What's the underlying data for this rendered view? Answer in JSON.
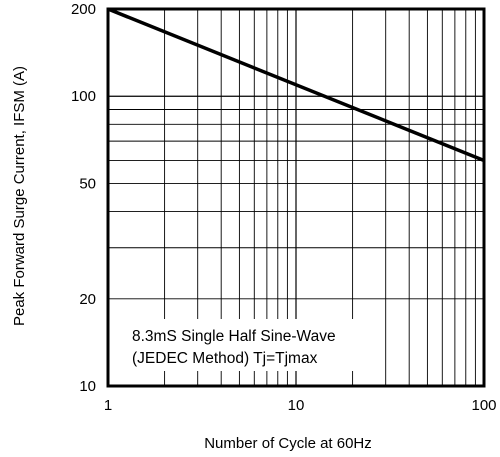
{
  "chart_data": {
    "type": "line",
    "title": "",
    "xlabel": "Number of Cycle at 60Hz",
    "ylabel": "Peak Forward Surge Current, IFSM (A)",
    "x_scale": "log",
    "y_scale": "log",
    "xlim": [
      1,
      100
    ],
    "ylim": [
      10,
      200
    ],
    "grid": true,
    "x_ticks": [
      {
        "value": 1,
        "label": "1"
      },
      {
        "value": 10,
        "label": "10"
      },
      {
        "value": 100,
        "label": "100"
      }
    ],
    "y_ticks": [
      {
        "value": 10,
        "label": "10"
      },
      {
        "value": 20,
        "label": "20"
      },
      {
        "value": 50,
        "label": "50"
      },
      {
        "value": 100,
        "label": "100"
      },
      {
        "value": 200,
        "label": "200"
      }
    ],
    "series": [
      {
        "x": [
          1,
          100
        ],
        "y": [
          200,
          60
        ]
      }
    ],
    "annotation": {
      "line1": "8.3mS Single Half Sine-Wave",
      "line2": "(JEDEC Method) Tj=Tjmax"
    }
  }
}
